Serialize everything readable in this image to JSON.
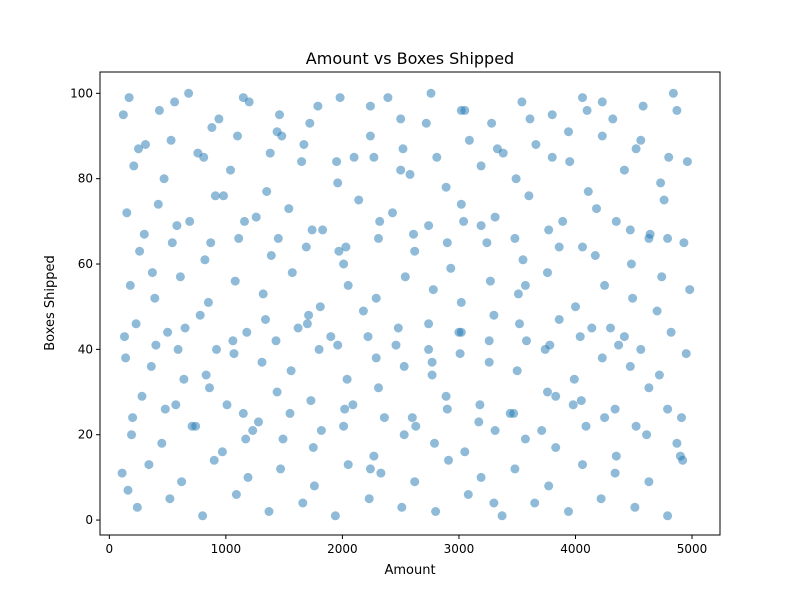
{
  "chart_data": {
    "type": "scatter",
    "title": "Amount vs Boxes Shipped",
    "xlabel": "Amount",
    "ylabel": "Boxes Shipped",
    "xlim": [
      -80,
      5240
    ],
    "ylim": [
      -3.5,
      105
    ],
    "xticks": [
      0,
      1000,
      2000,
      3000,
      4000,
      5000
    ],
    "yticks": [
      0,
      20,
      40,
      60,
      80,
      100
    ],
    "xtick_labels": [
      "0",
      "1000",
      "2000",
      "3000",
      "4000",
      "5000"
    ],
    "ytick_labels": [
      "0",
      "20",
      "40",
      "60",
      "80",
      "100"
    ],
    "grid": false,
    "legend": "none",
    "marker_color": "#1f77b4",
    "marker_alpha": 0.5,
    "series": [
      {
        "x": [
          120,
          310,
          560,
          880,
          1150,
          1480,
          1790,
          2100,
          2390,
          2720,
          3050,
          3330,
          3610,
          3940,
          4230,
          4560,
          4870,
          210,
          470,
          760,
          1040,
          1350,
          1650,
          1960,
          2270,
          2580,
          2890,
          3190,
          3490,
          3800,
          4110,
          4420,
          4730,
          4960,
          150,
          420,
          690,
          980,
          1260,
          1540,
          1830,
          2140,
          2430,
          2740,
          3020,
          3310,
          3600,
          3890,
          4180,
          4470,
          4760,
          260,
          540,
          820,
          1110,
          1390,
          1690,
          2010,
          2310,
          2620,
          2930,
          3240,
          3550,
          3860,
          4170,
          4480,
          4790,
          180,
          390,
          610,
          850,
          1080,
          1320,
          1570,
          1810,
          2050,
          2290,
          2540,
          2780,
          3020,
          3270,
          3510,
          3760,
          4000,
          4250,
          4490,
          4740,
          4980,
          230,
          500,
          780,
          1060,
          1340,
          1620,
          1900,
          2180,
          2460,
          2740,
          3020,
          3300,
          3580,
          3860,
          4140,
          4420,
          4700,
          140,
          360,
          590,
          830,
          1070,
          1310,
          1560,
          1800,
          2040,
          2290,
          2530,
          2770,
          3010,
          3260,
          3500,
          3740,
          3990,
          4230,
          4470,
          4720,
          4950,
          280,
          570,
          860,
          1150,
          1440,
          1730,
          2020,
          2310,
          2600,
          2890,
          3180,
          3470,
          3760,
          4050,
          4340,
          4630,
          4910,
          190,
          450,
          710,
          970,
          1230,
          1490,
          1750,
          2010,
          2270,
          2530,
          2790,
          3050,
          3310,
          3570,
          3830,
          4090,
          4350,
          4610,
          4870,
          110,
          340,
          620,
          900,
          1190,
          1470,
          1760,
          2050,
          2330,
          2620,
          2910,
          3190,
          3480,
          3770,
          4060,
          4340,
          4630,
          4920,
          240,
          520,
          800,
          1090,
          1370,
          1660,
          1940,
          2230,
          2510,
          2800,
          3080,
          3370,
          3650,
          3940,
          4220,
          4510,
          4790,
          170,
          430,
          680,
          940,
          1200,
          1460,
          1720,
          1980,
          2240,
          2500,
          2760,
          3020,
          3280,
          3540,
          3800,
          4060,
          4320,
          4580,
          4840,
          300,
          580,
          870,
          1160,
          1450,
          1740,
          2030,
          2320,
          2610,
          2900,
          3190,
          3480,
          3770,
          4060,
          4350,
          4640,
          4930,
          130,
          400,
          650,
          920,
          1180,
          1430,
          1700,
          1960,
          2220,
          2480,
          2740,
          3000,
          3260,
          3520,
          3780,
          4040,
          4300,
          4560,
          4820,
          250,
          530,
          810,
          1100,
          1380,
          1670,
          1950,
          2240,
          2520,
          2810,
          3090,
          3380,
          3660,
          3950,
          4230,
          4520,
          4800,
          200,
          480,
          740,
          1010,
          1280,
          1550,
          1820,
          2090,
          2360,
          2630,
          2900,
          3170,
          3440,
          3710,
          3980,
          4250,
          4520,
          4790,
          160,
          370,
          640,
          910,
          1170,
          1440,
          1710,
          1970,
          2240,
          2500,
          2770,
          3040,
          3300,
          3570,
          3830,
          4100,
          4370,
          4630,
          4900
        ],
        "y": [
          95,
          88,
          98,
          92,
          99,
          90,
          97,
          85,
          99,
          93,
          96,
          87,
          94,
          91,
          98,
          89,
          96,
          83,
          80,
          86,
          82,
          77,
          84,
          79,
          85,
          81,
          78,
          83,
          80,
          85,
          77,
          82,
          79,
          84,
          72,
          74,
          70,
          76,
          71,
          73,
          68,
          75,
          72,
          69,
          74,
          71,
          76,
          70,
          73,
          68,
          75,
          63,
          65,
          61,
          66,
          62,
          64,
          60,
          66,
          63,
          59,
          65,
          61,
          64,
          62,
          60,
          66,
          55,
          52,
          57,
          51,
          56,
          53,
          58,
          50,
          55,
          52,
          57,
          54,
          51,
          56,
          53,
          58,
          50,
          55,
          52,
          57,
          54,
          46,
          44,
          48,
          42,
          47,
          45,
          43,
          49,
          41,
          46,
          44,
          48,
          42,
          47,
          45,
          43,
          49,
          38,
          36,
          40,
          34,
          39,
          37,
          35,
          40,
          33,
          38,
          36,
          34,
          39,
          37,
          35,
          40,
          33,
          38,
          36,
          34,
          39,
          29,
          27,
          31,
          25,
          30,
          28,
          26,
          31,
          24,
          29,
          27,
          25,
          30,
          28,
          26,
          31,
          24,
          20,
          18,
          22,
          16,
          21,
          19,
          17,
          22,
          15,
          20,
          18,
          16,
          21,
          19,
          17,
          22,
          15,
          20,
          18,
          11,
          13,
          9,
          14,
          10,
          12,
          8,
          13,
          11,
          9,
          14,
          10,
          12,
          8,
          13,
          11,
          9,
          14,
          3,
          5,
          1,
          6,
          2,
          4,
          1,
          5,
          3,
          2,
          6,
          1,
          4,
          2,
          5,
          3,
          1,
          99,
          96,
          100,
          94,
          98,
          95,
          93,
          99,
          97,
          94,
          100,
          96,
          93,
          98,
          95,
          99,
          94,
          97,
          100,
          67,
          69,
          65,
          70,
          66,
          68,
          64,
          70,
          67,
          65,
          69,
          66,
          68,
          64,
          70,
          67,
          65,
          43,
          41,
          45,
          40,
          44,
          42,
          46,
          41,
          43,
          45,
          40,
          44,
          42,
          46,
          41,
          43,
          45,
          40,
          44,
          87,
          89,
          85,
          90,
          86,
          88,
          84,
          90,
          87,
          85,
          89,
          86,
          88,
          84,
          90,
          87,
          85,
          24,
          26,
          22,
          27,
          23,
          25,
          21,
          27,
          24,
          22,
          26,
          23,
          25,
          21,
          27,
          24,
          22,
          26,
          7,
          58,
          33,
          76,
          19,
          91,
          48,
          63,
          12,
          82,
          37,
          70,
          4,
          55,
          29,
          96,
          41,
          66,
          15
        ]
      }
    ]
  }
}
